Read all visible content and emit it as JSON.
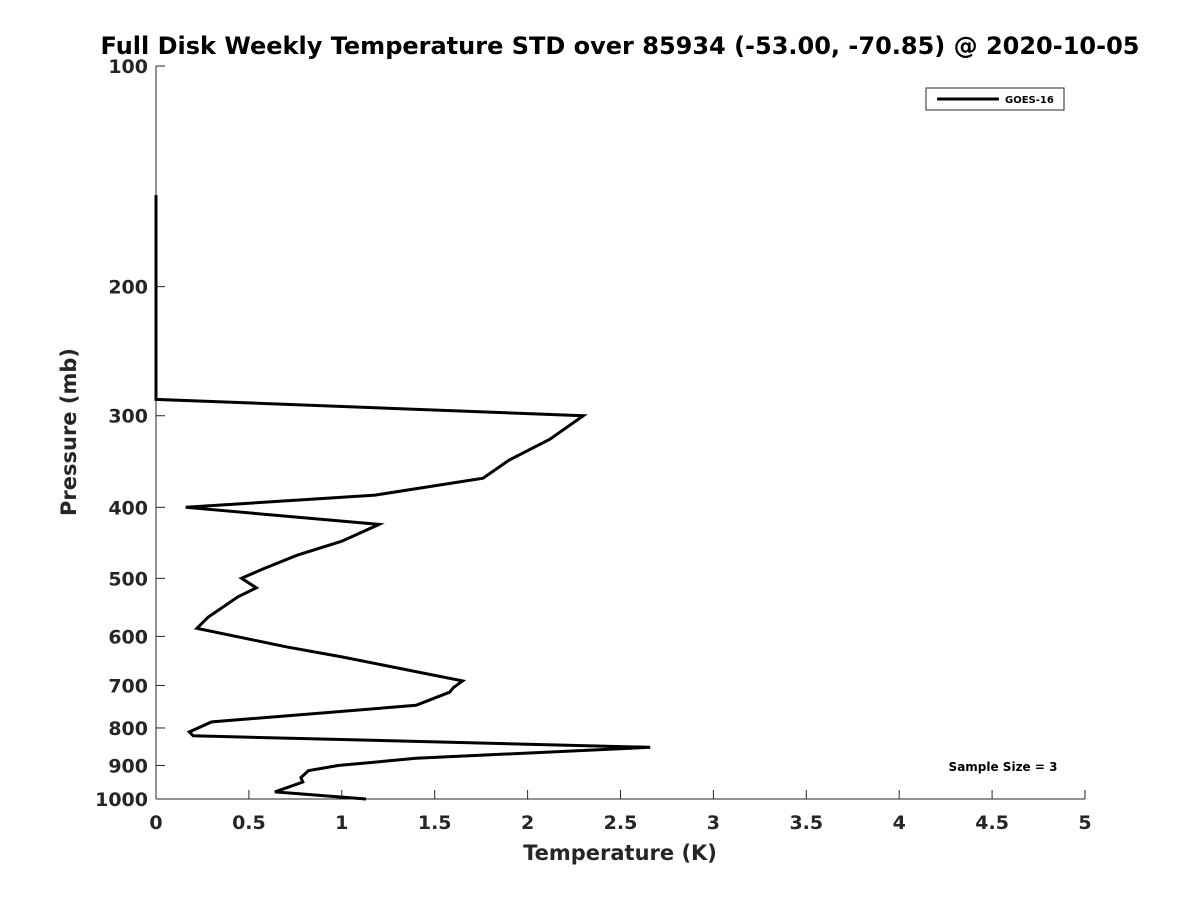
{
  "chart_data": {
    "type": "line",
    "title": "Full Disk Weekly Temperature STD over 85934 (-53.00, -70.85) @ 2020-10-05",
    "xlabel": "Temperature (K)",
    "ylabel": "Pressure (mb)",
    "xlim": [
      0,
      5
    ],
    "ylim": [
      100,
      1000
    ],
    "y_scale": "log",
    "y_reversed": true,
    "grid": false,
    "legend_position": "top-right",
    "x_ticks": [
      0,
      0.5,
      1,
      1.5,
      2,
      2.5,
      3,
      3.5,
      4,
      4.5,
      5
    ],
    "x_tick_labels": [
      "0",
      "0.5",
      "1",
      "1.5",
      "2",
      "2.5",
      "3",
      "3.5",
      "4",
      "4.5",
      "5"
    ],
    "y_ticks": [
      100,
      200,
      300,
      400,
      500,
      600,
      700,
      800,
      900,
      1000
    ],
    "y_tick_labels": [
      "100",
      "200",
      "300",
      "400",
      "500",
      "600",
      "700",
      "800",
      "900",
      "1000"
    ],
    "series": [
      {
        "name": "GOES-16",
        "color": "#000000",
        "points": [
          {
            "x": 0.0,
            "y": 150
          },
          {
            "x": 0.0,
            "y": 180
          },
          {
            "x": 0.0,
            "y": 200
          },
          {
            "x": 0.0,
            "y": 250
          },
          {
            "x": 0.0,
            "y": 285
          },
          {
            "x": 2.3,
            "y": 300
          },
          {
            "x": 2.12,
            "y": 323
          },
          {
            "x": 1.9,
            "y": 345
          },
          {
            "x": 1.76,
            "y": 365
          },
          {
            "x": 1.18,
            "y": 385
          },
          {
            "x": 0.16,
            "y": 400
          },
          {
            "x": 1.2,
            "y": 422
          },
          {
            "x": 1.0,
            "y": 445
          },
          {
            "x": 0.76,
            "y": 465
          },
          {
            "x": 0.58,
            "y": 485
          },
          {
            "x": 0.46,
            "y": 500
          },
          {
            "x": 0.54,
            "y": 515
          },
          {
            "x": 0.44,
            "y": 530
          },
          {
            "x": 0.28,
            "y": 565
          },
          {
            "x": 0.22,
            "y": 585
          },
          {
            "x": 0.7,
            "y": 620
          },
          {
            "x": 1.0,
            "y": 640
          },
          {
            "x": 1.65,
            "y": 690
          },
          {
            "x": 1.6,
            "y": 705
          },
          {
            "x": 1.58,
            "y": 715
          },
          {
            "x": 1.4,
            "y": 745
          },
          {
            "x": 0.3,
            "y": 785
          },
          {
            "x": 0.18,
            "y": 810
          },
          {
            "x": 0.2,
            "y": 820
          },
          {
            "x": 2.66,
            "y": 850
          },
          {
            "x": 1.4,
            "y": 880
          },
          {
            "x": 0.98,
            "y": 900
          },
          {
            "x": 0.82,
            "y": 915
          },
          {
            "x": 0.78,
            "y": 935
          },
          {
            "x": 0.79,
            "y": 948
          },
          {
            "x": 0.64,
            "y": 978
          },
          {
            "x": 1.13,
            "y": 1000
          }
        ]
      }
    ],
    "annotations": [
      {
        "text": "Sample Size = 3",
        "position": "bottom-right"
      }
    ]
  }
}
